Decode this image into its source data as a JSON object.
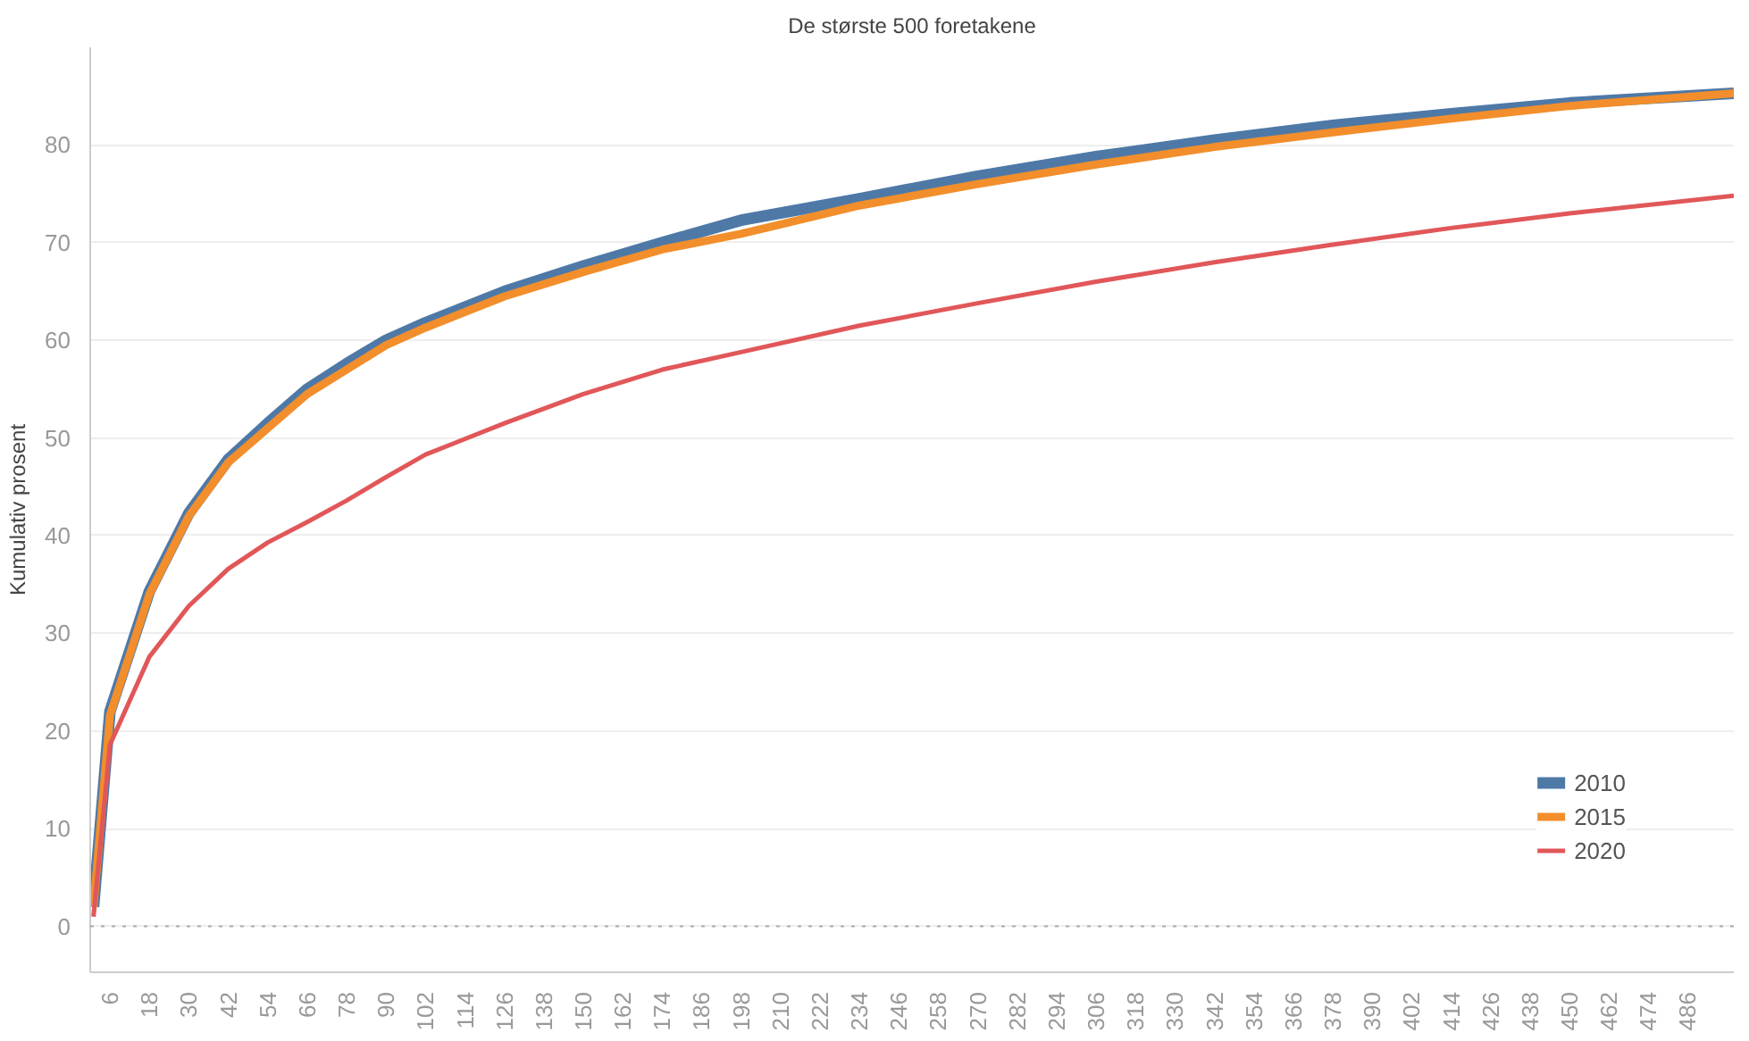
{
  "chart_data": {
    "type": "line",
    "title": "De største 500 foretakene",
    "ylabel": "Kumulativ prosent",
    "x": [
      1,
      6,
      18,
      30,
      42,
      54,
      66,
      78,
      90,
      102,
      126,
      150,
      174,
      198,
      234,
      270,
      306,
      342,
      378,
      414,
      450,
      500
    ],
    "series": [
      {
        "name": "2010",
        "color": "#4e79a7",
        "values": [
          2,
          22,
          34.3,
          42.3,
          47.8,
          51.5,
          55,
          57.6,
          60,
          61.8,
          65,
          67.6,
          70,
          72.3,
          74.5,
          76.8,
          78.8,
          80.5,
          82,
          83.2,
          84.3,
          85.3
        ]
      },
      {
        "name": "2015",
        "color": "#f28e2b",
        "values": [
          2,
          21.6,
          34,
          42,
          47.5,
          51,
          54.5,
          57,
          59.5,
          61.3,
          64.5,
          67,
          69.3,
          70.9,
          73.8,
          76,
          78,
          79.8,
          81.3,
          82.7,
          84,
          85.3
        ]
      },
      {
        "name": "2020",
        "color": "#e15759",
        "values": [
          1,
          18.6,
          27.6,
          32.8,
          36.6,
          39.3,
          41.4,
          43.6,
          46,
          48.3,
          51.5,
          54.5,
          57,
          58.8,
          61.5,
          63.8,
          66,
          68,
          69.8,
          71.5,
          73,
          74.8
        ]
      }
    ],
    "xlim": [
      0,
      500
    ],
    "ylim": [
      -4.7,
      90
    ],
    "xticks": [
      6,
      18,
      30,
      42,
      54,
      66,
      78,
      90,
      102,
      114,
      126,
      138,
      150,
      162,
      174,
      186,
      198,
      210,
      222,
      234,
      246,
      258,
      270,
      282,
      294,
      306,
      318,
      330,
      342,
      354,
      366,
      378,
      390,
      402,
      414,
      426,
      438,
      450,
      462,
      474,
      486
    ],
    "yticks": [
      0,
      10,
      20,
      30,
      40,
      50,
      60,
      70,
      80
    ],
    "ref_lines": [
      {
        "axis": "y",
        "value": 0,
        "color": "#aaaaaa",
        "line_style": "dotted"
      }
    ],
    "grid": "y",
    "legend": "bottom right",
    "line_style": "solid",
    "marker": "none"
  }
}
